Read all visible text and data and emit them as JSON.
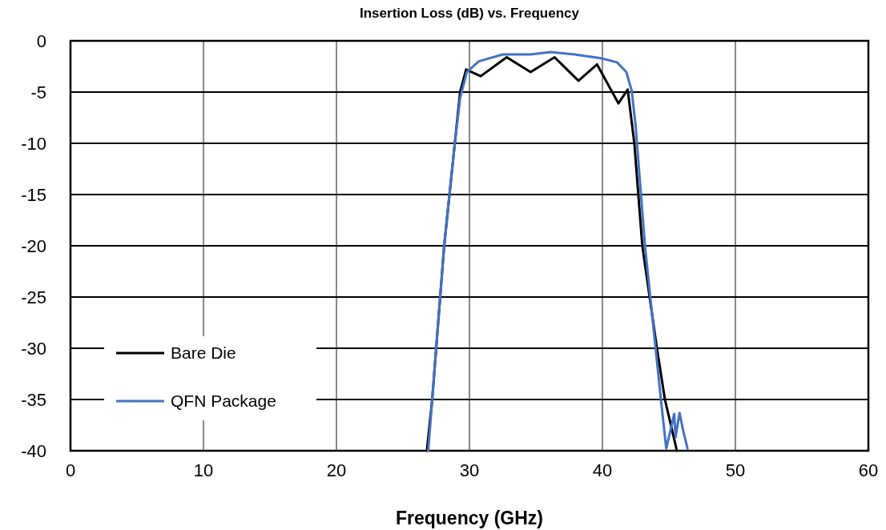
{
  "chart_data": {
    "type": "line",
    "title": "Insertion Loss (dB) vs. Frequency",
    "xlabel": "Frequency (GHz)",
    "xlim": [
      0,
      60
    ],
    "xticks": [
      0,
      10,
      20,
      30,
      40,
      50,
      60
    ],
    "ylim": [
      -40,
      0
    ],
    "yticks": [
      -40,
      -35,
      -30,
      -25,
      -20,
      -15,
      -10,
      -5,
      0
    ],
    "grid": true,
    "legend": "bottom left",
    "line_style": "solid",
    "series": [
      {
        "name": "Bare Die",
        "color": "#000000",
        "x": [
          26.8,
          27.2,
          27.5,
          28.1,
          28.9,
          29.3,
          29.75,
          30.85,
          32.8,
          34.6,
          36.4,
          38.2,
          39.6,
          41.2,
          41.9,
          42.4,
          43.0,
          44.1,
          44.7,
          45.6
        ],
        "values": [
          -40,
          -35,
          -30,
          -20,
          -10,
          -5,
          -2.8,
          -3.45,
          -1.6,
          -3.05,
          -1.6,
          -3.9,
          -2.3,
          -6.1,
          -4.75,
          -10,
          -20,
          -30,
          -35,
          -40
        ]
      },
      {
        "name": "QFN Package",
        "color": "#4472c4",
        "x": [
          26.9,
          27.2,
          27.5,
          28.1,
          28.9,
          29.3,
          29.8,
          30.7,
          32.5,
          34.6,
          36.1,
          37.9,
          39.9,
          41.1,
          41.8,
          42.2,
          42.5,
          42.6,
          43.2,
          44.0,
          44.4,
          44.8,
          45.4,
          45.5,
          45.8,
          46.1,
          46.4
        ],
        "values": [
          -40,
          -35,
          -30,
          -20,
          -10,
          -5.6,
          -3.05,
          -2.0,
          -1.33,
          -1.33,
          -1.1,
          -1.33,
          -1.7,
          -2.1,
          -3.05,
          -4.85,
          -8.3,
          -10,
          -20,
          -30,
          -35,
          -39.8,
          -36.4,
          -38.7,
          -36.3,
          -38.2,
          -39.8
        ]
      }
    ]
  }
}
